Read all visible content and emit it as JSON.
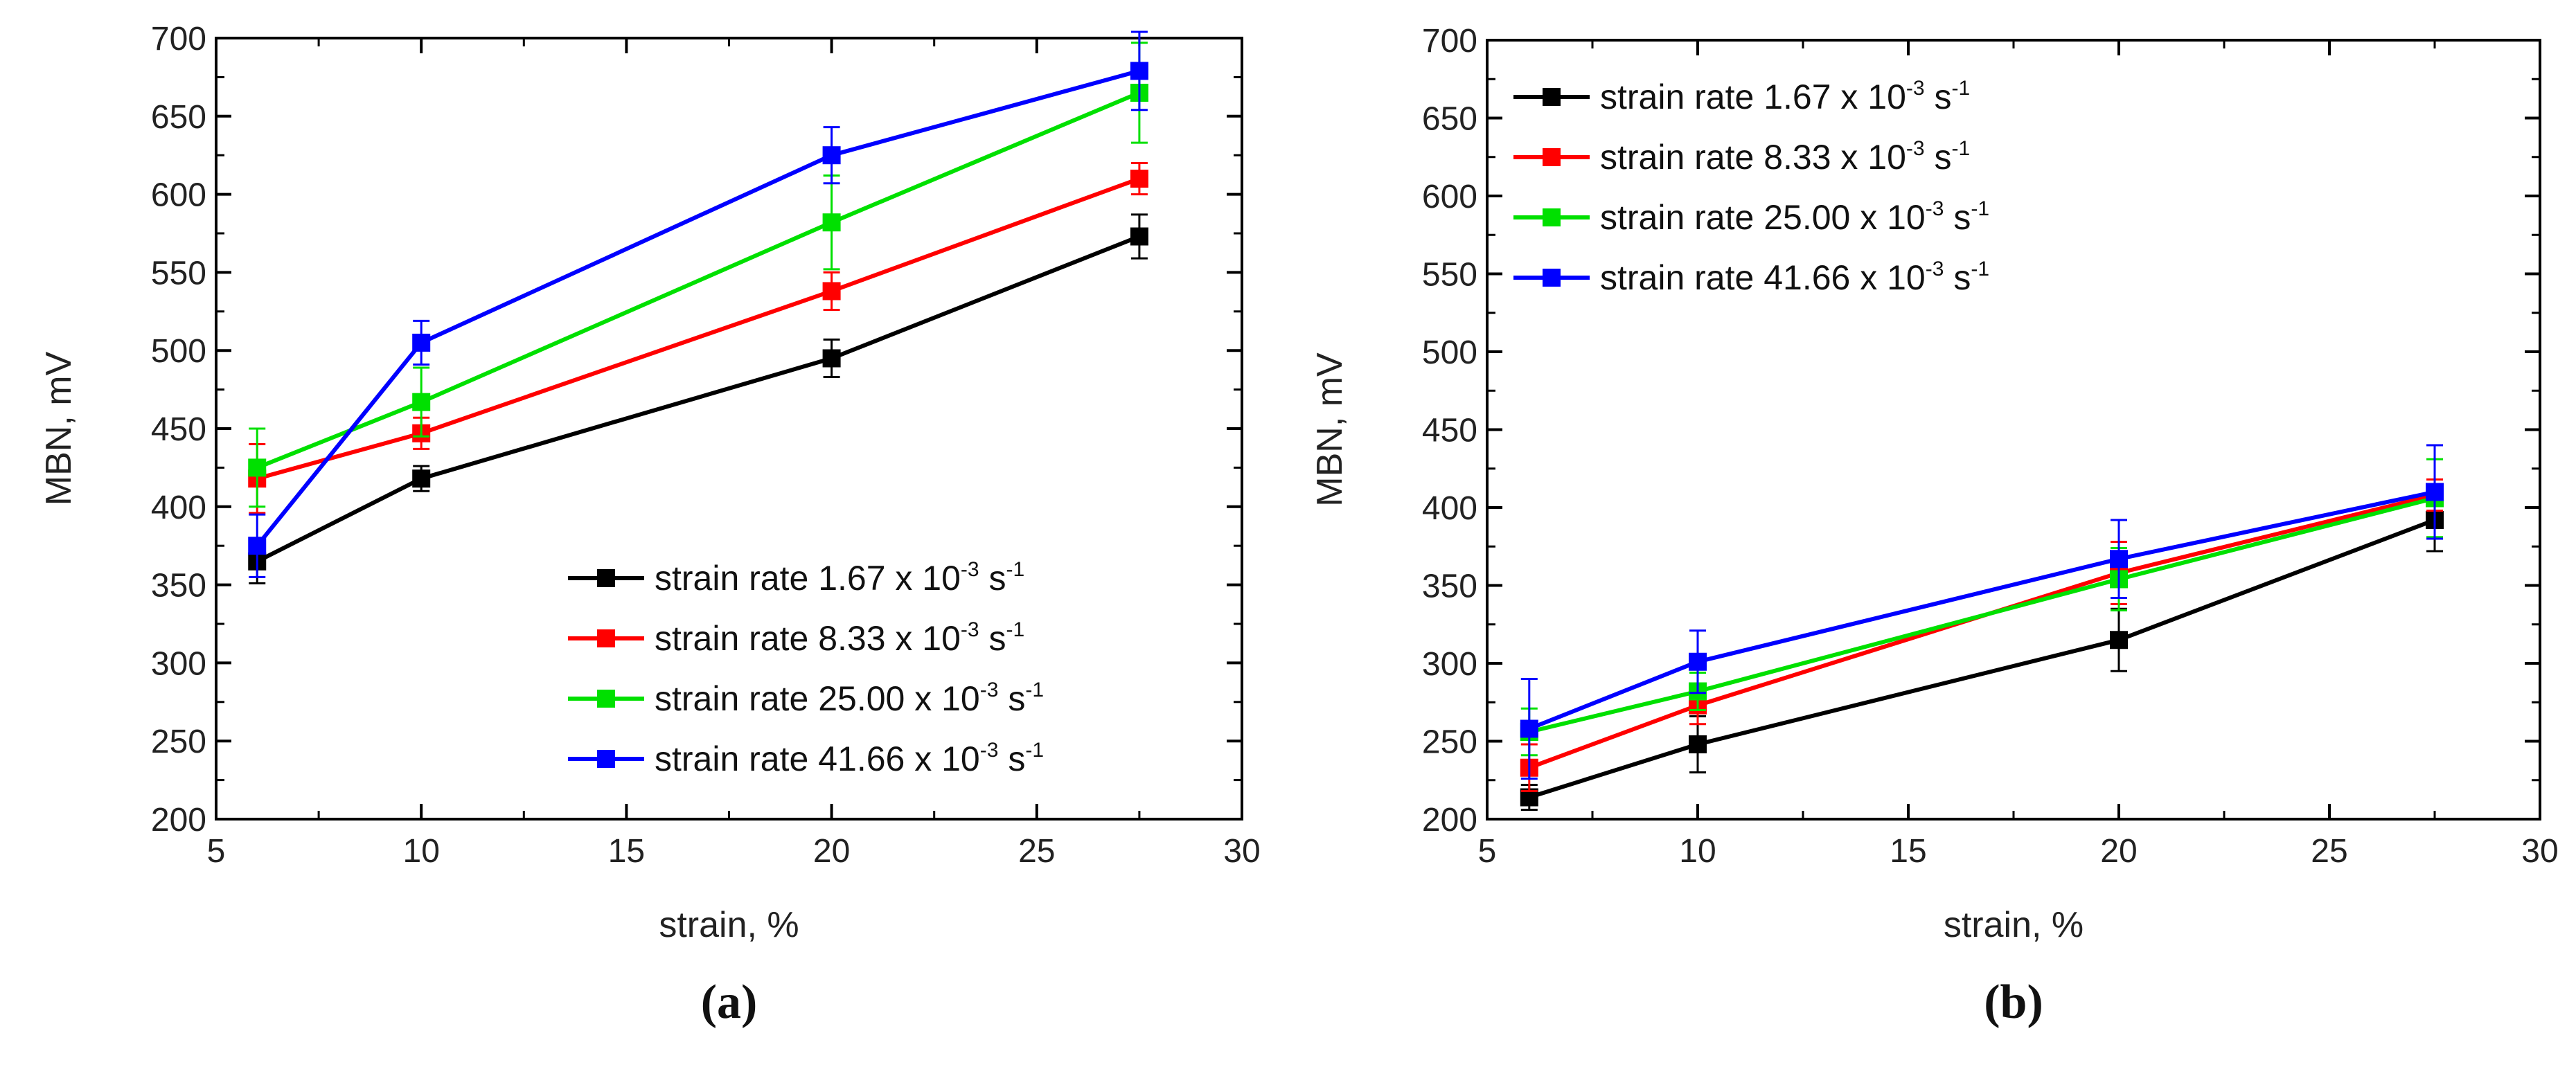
{
  "chart_data": [
    {
      "type": "line",
      "panel_label": "(a)",
      "xlabel": "strain, %",
      "ylabel": "MBN, mV",
      "xlim": [
        5,
        30
      ],
      "ylim": [
        200,
        700
      ],
      "x_ticks": [
        5,
        10,
        15,
        20,
        25,
        30
      ],
      "y_ticks": [
        200,
        250,
        300,
        350,
        400,
        450,
        500,
        550,
        600,
        650,
        700
      ],
      "legend_placement": "bottom-right",
      "x": [
        6,
        10,
        20,
        27.5
      ],
      "series": [
        {
          "name": "strain rate 1.67 x 10-3 s-1",
          "legend": {
            "prefix": "strain rate 1.67 x 10",
            "exp1": "-3",
            "unit": " s",
            "exp2": "-1"
          },
          "color": "#000000",
          "values": [
            365,
            418,
            495,
            573
          ],
          "errors": [
            14,
            8,
            12,
            14
          ]
        },
        {
          "name": "strain rate 8.33 x 10-3 s-1",
          "legend": {
            "prefix": "strain rate 8.33 x 10",
            "exp1": "-3",
            "unit": " s",
            "exp2": "-1"
          },
          "color": "#ff0000",
          "values": [
            418,
            447,
            538,
            610
          ],
          "errors": [
            22,
            10,
            12,
            10
          ]
        },
        {
          "name": "strain rate 25.00 x 10-3 s-1",
          "legend": {
            "prefix": "strain rate 25.00 x 10",
            "exp1": "-3",
            "unit": " s",
            "exp2": "-1"
          },
          "color": "#00e000",
          "values": [
            425,
            467,
            582,
            665
          ],
          "errors": [
            25,
            22,
            30,
            32
          ]
        },
        {
          "name": "strain rate 41.66 x 10-3 s-1",
          "legend": {
            "prefix": "strain rate 41.66 x 10",
            "exp1": "-3",
            "unit": " s",
            "exp2": "-1"
          },
          "color": "#0000ff",
          "values": [
            375,
            505,
            625,
            679
          ],
          "errors": [
            20,
            14,
            18,
            25
          ]
        }
      ]
    },
    {
      "type": "line",
      "panel_label": "(b)",
      "xlabel": "strain, %",
      "ylabel": "MBN, mV",
      "xlim": [
        5,
        30
      ],
      "ylim": [
        200,
        700
      ],
      "x_ticks": [
        5,
        10,
        15,
        20,
        25,
        30
      ],
      "y_ticks": [
        200,
        250,
        300,
        350,
        400,
        450,
        500,
        550,
        600,
        650,
        700
      ],
      "legend_placement": "top-left",
      "x": [
        6,
        10,
        20,
        27.5
      ],
      "series": [
        {
          "name": "strain rate 1.67 x 10-3 s-1",
          "legend": {
            "prefix": "strain rate 1.67 x 10",
            "exp1": "-3",
            "unit": " s",
            "exp2": "-1"
          },
          "color": "#000000",
          "values": [
            214,
            248,
            315,
            392
          ],
          "errors": [
            8,
            18,
            20,
            20
          ]
        },
        {
          "name": "strain rate 8.33 x 10-3 s-1",
          "legend": {
            "prefix": "strain rate 8.33 x 10",
            "exp1": "-3",
            "unit": " s",
            "exp2": "-1"
          },
          "color": "#ff0000",
          "values": [
            233,
            273,
            358,
            408
          ],
          "errors": [
            15,
            12,
            20,
            10
          ]
        },
        {
          "name": "strain rate 25.00 x 10-3 s-1",
          "legend": {
            "prefix": "strain rate 25.00 x 10",
            "exp1": "-3",
            "unit": " s",
            "exp2": "-1"
          },
          "color": "#00e000",
          "values": [
            256,
            282,
            354,
            406
          ],
          "errors": [
            15,
            12,
            20,
            25
          ]
        },
        {
          "name": "strain rate 41.66 x 10-3 s-1",
          "legend": {
            "prefix": "strain rate 41.66 x 10",
            "exp1": "-3",
            "unit": " s",
            "exp2": "-1"
          },
          "color": "#0000ff",
          "values": [
            258,
            301,
            367,
            410
          ],
          "errors": [
            32,
            20,
            25,
            30
          ]
        }
      ]
    }
  ]
}
